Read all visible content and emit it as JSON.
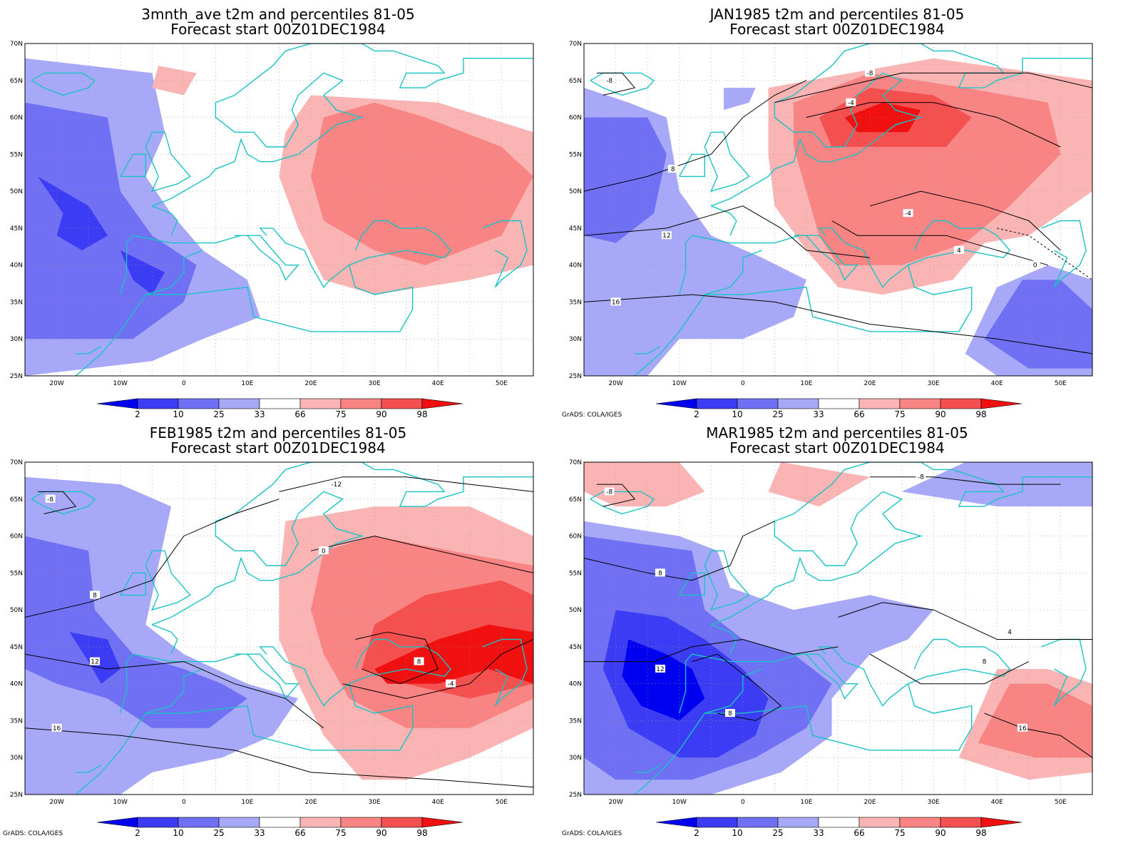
{
  "panels": [
    {
      "title": "3mnth_ave t2m and percentiles 81-05",
      "subtitle": "Forecast start 00Z01DEC1984",
      "credit": ""
    },
    {
      "title": "JAN1985 t2m and percentiles 81-05",
      "subtitle": "Forecast start 00Z01DEC1984",
      "credit": "GrADS: COLA/IGES"
    },
    {
      "title": "FEB1985 t2m and percentiles 81-05",
      "subtitle": "Forecast start 00Z01DEC1984",
      "credit": "GrADS: COLA/IGES"
    },
    {
      "title": "MAR1985 t2m and percentiles 81-05",
      "subtitle": "Forecast start 00Z01DEC1984",
      "credit": "GrADS: COLA/IGES"
    }
  ],
  "axes": {
    "lon_labels": [
      "20W",
      "10W",
      "0",
      "10E",
      "20E",
      "30E",
      "40E",
      "50E"
    ],
    "lat_labels": [
      "70N",
      "65N",
      "60N",
      "55N",
      "50N",
      "45N",
      "40N",
      "35N",
      "30N",
      "25N"
    ]
  },
  "colorbar": {
    "labels": [
      "2",
      "10",
      "25",
      "33",
      "66",
      "75",
      "90",
      "98"
    ],
    "colors": [
      "#0000f0",
      "#3c3cf5",
      "#7070f5",
      "#a8a8f8",
      "#ffffff",
      "#fab4b4",
      "#f88484",
      "#f45050",
      "#f01010"
    ]
  },
  "colors": {
    "coastline": "#19c3c3",
    "contour": "#000000",
    "frame": "#000000"
  }
}
